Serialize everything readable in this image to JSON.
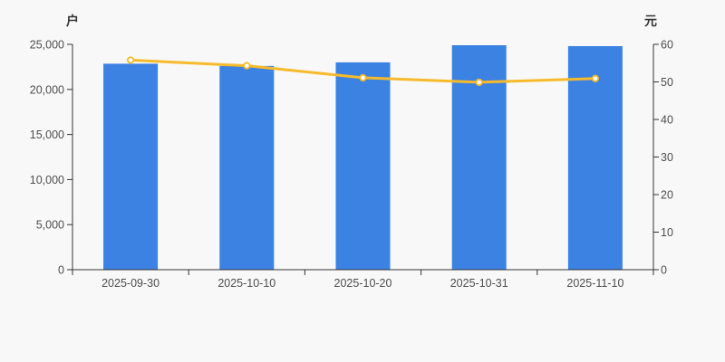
{
  "page": {
    "background": "#f8f8f8"
  },
  "colors": {
    "axis_line": "#333333",
    "tick_label": "#4d4d4d",
    "axis_name": "#333333",
    "bar_blue": "#3c82e2",
    "line_gold": "#f7ba2a",
    "marker_fill": "#ffffff"
  },
  "chart_data": {
    "type": "bar+line",
    "title": "",
    "legend": "none",
    "grid": false,
    "categories": [
      "2025-09-30",
      "2025-10-10",
      "2025-10-20",
      "2025-10-31",
      "2025-11-10"
    ],
    "series": [
      {
        "name": "bars",
        "type": "bar",
        "y_axis": "left",
        "color": "#3c82e2",
        "values": [
          22850,
          22600,
          23000,
          24900,
          24800
        ]
      },
      {
        "name": "line",
        "type": "line",
        "y_axis": "right",
        "color": "#f7ba2a",
        "marker": "circle-white-fill-gold-stroke",
        "values": [
          55.8,
          54.3,
          51.1,
          49.9,
          50.9
        ]
      }
    ],
    "left_axis": {
      "name": "户",
      "min": 0,
      "max": 25000,
      "tick_step": 5000,
      "tick_labels": [
        "0",
        "5,000",
        "10,000",
        "15,000",
        "20,000",
        "25,000"
      ]
    },
    "right_axis": {
      "name": "元",
      "min": 0,
      "max": 60,
      "tick_step": 10,
      "tick_labels": [
        "0",
        "10",
        "20",
        "30",
        "40",
        "50",
        "60"
      ]
    }
  }
}
